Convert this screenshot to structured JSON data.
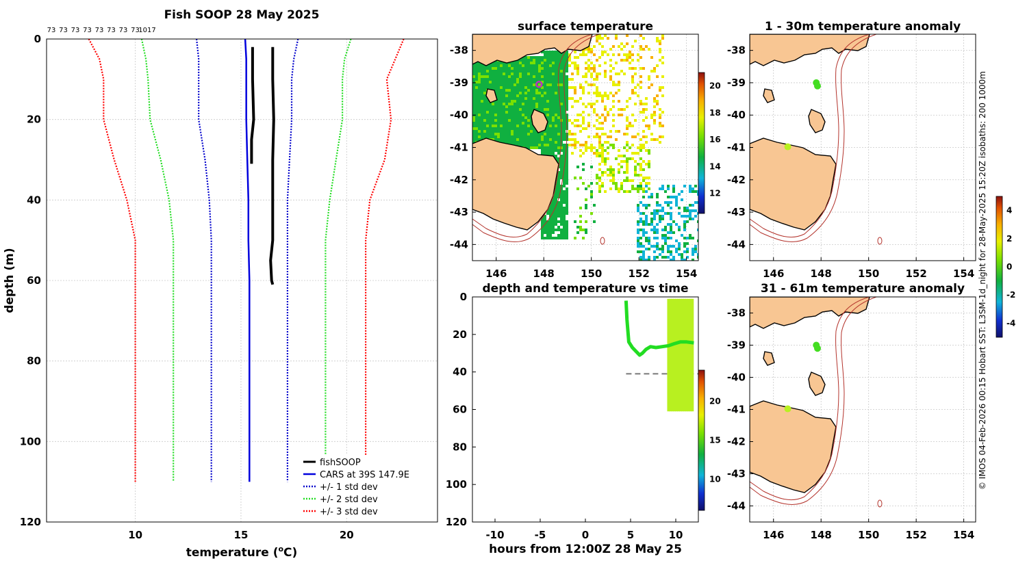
{
  "chart_data": [
    {
      "type": "line",
      "title": "Fish SOOP 28 May 2025",
      "xlabel": "temperature (",
      "xlabel_unit": "o",
      "xlabel_tail": "C)",
      "ylabel": "depth (m)",
      "xlim": [
        5.8,
        24.3
      ],
      "ylim": [
        0,
        120
      ],
      "xticks": [
        "10",
        "15",
        "20"
      ],
      "xtick_values": [
        10,
        15,
        20
      ],
      "yticks": [
        "0",
        "20",
        "40",
        "60",
        "80",
        "100",
        "120"
      ],
      "ytick_values": [
        0,
        20,
        40,
        60,
        80,
        100,
        120
      ],
      "top_labels": [
        "73",
        "73",
        "73",
        "73",
        "73",
        "73",
        "73",
        "73",
        "1017"
      ],
      "series": [
        {
          "name": "+/- 3 std dev",
          "color": "#ff0000",
          "style": "dotted",
          "depth": [
            0,
            5,
            10,
            20,
            30,
            40,
            50,
            110
          ],
          "left": [
            7.8,
            8.3,
            8.5,
            8.5,
            9.0,
            9.6,
            10.0,
            10.0
          ],
          "right": [
            22.7,
            22.3,
            21.9,
            22.1,
            21.8,
            21.1,
            20.9,
            20.9
          ]
        },
        {
          "name": "+/- 2 std dev",
          "color": "#22dd22",
          "style": "dotted",
          "depth": [
            0,
            5,
            10,
            20,
            30,
            40,
            50,
            110
          ],
          "left": [
            10.3,
            10.5,
            10.6,
            10.7,
            11.2,
            11.6,
            11.8,
            11.8
          ],
          "right": [
            20.2,
            19.9,
            19.8,
            19.8,
            19.5,
            19.2,
            19.0,
            19.0
          ]
        },
        {
          "name": "+/- 1 std dev",
          "color": "#0000cc",
          "style": "dotted",
          "depth": [
            0,
            5,
            10,
            20,
            30,
            40,
            50,
            110
          ],
          "left": [
            12.9,
            13.0,
            13.0,
            13.0,
            13.3,
            13.5,
            13.6,
            13.6
          ],
          "right": [
            17.7,
            17.5,
            17.4,
            17.4,
            17.3,
            17.2,
            17.2,
            17.2
          ]
        },
        {
          "name": "CARS at 39S 147.9E",
          "color": "#0000dd",
          "style": "solid",
          "depth": [
            0,
            5,
            10,
            20,
            30,
            40,
            50,
            60,
            70,
            110
          ],
          "temp": [
            15.2,
            15.25,
            15.25,
            15.25,
            15.3,
            15.35,
            15.35,
            15.4,
            15.4,
            15.4
          ]
        },
        {
          "name": "fishSOOP",
          "color": "#000000",
          "style": "solid",
          "depth": [
            2,
            10,
            20,
            30,
            40,
            50,
            55,
            60,
            61
          ],
          "temp": [
            16.5,
            16.5,
            16.55,
            16.5,
            16.5,
            16.5,
            16.4,
            16.45,
            16.5
          ],
          "depth2": [
            2,
            10,
            20,
            25,
            31
          ],
          "temp2": [
            15.55,
            15.55,
            15.6,
            15.5,
            15.5
          ]
        }
      ],
      "legend": [
        "fishSOOP",
        "CARS at 39S 147.9E",
        "+/- 1 std dev",
        "+/- 2 std dev",
        "+/- 3 std dev"
      ]
    },
    {
      "type": "heatmap",
      "title": "surface temperature",
      "xlim": [
        145,
        154.5
      ],
      "ylim": [
        -44.5,
        -37.5
      ],
      "xticks": [
        "146",
        "148",
        "150",
        "152",
        "154"
      ],
      "xtick_values": [
        146,
        148,
        150,
        152,
        154
      ],
      "yticks": [
        "-38",
        "-39",
        "-40",
        "-41",
        "-42",
        "-43",
        "-44"
      ],
      "ytick_values": [
        -38,
        -39,
        -40,
        -41,
        -42,
        -43,
        -44
      ],
      "colorbar_ticks": [
        "12",
        "14",
        "16",
        "18",
        "20"
      ],
      "colorbar_values": [
        12,
        14,
        16,
        18,
        20
      ],
      "colorbar_range": [
        10.5,
        21
      ],
      "marker_position": [
        147.8,
        -39.05
      ]
    },
    {
      "type": "scatter",
      "title": "depth and temperature vs time",
      "xlabel": "hours from 12:00Z 28 May 25",
      "xlim": [
        -12.5,
        12.5
      ],
      "ylim": [
        0,
        120
      ],
      "xticks": [
        "-10",
        "-5",
        "0",
        "5",
        "10"
      ],
      "xtick_values": [
        -10,
        -5,
        0,
        5,
        10
      ],
      "yticks": [
        "0",
        "20",
        "40",
        "60",
        "80",
        "100",
        "120"
      ],
      "ytick_values": [
        0,
        20,
        40,
        60,
        80,
        100,
        120
      ],
      "reference_depth": 41,
      "colorbar_ticks": [
        "10",
        "15",
        "20"
      ],
      "colorbar_values": [
        10,
        15,
        20
      ],
      "colorbar_range": [
        6,
        24
      ],
      "track_hours": [
        4.5,
        4.6,
        4.8,
        5.2,
        5.6,
        6.0,
        6.3,
        6.7,
        7.2,
        7.8,
        8.5,
        9.2,
        9.8,
        10.5,
        11.2,
        12.0
      ],
      "track_depths": [
        2,
        12,
        24,
        27,
        29,
        31,
        30,
        28,
        26.5,
        27,
        26.5,
        26,
        25,
        24,
        24,
        24.5
      ]
    },
    {
      "type": "scatter",
      "title": "1 - 30m temperature anomaly",
      "xlim": [
        145,
        154.5
      ],
      "ylim": [
        -44.5,
        -37.5
      ],
      "xticks": [
        "146",
        "148",
        "150",
        "152",
        "154"
      ],
      "xtick_values": [
        146,
        148,
        150,
        152,
        154
      ],
      "yticks": [
        "-38",
        "-39",
        "-40",
        "-41",
        "-42",
        "-43",
        "-44"
      ],
      "ytick_values": [
        -38,
        -39,
        -40,
        -41,
        -42,
        -43,
        -44
      ],
      "points": [
        [
          147.8,
          -39.0
        ],
        [
          147.85,
          -39.1
        ],
        [
          146.6,
          -40.98
        ]
      ]
    },
    {
      "type": "scatter",
      "title": "31 - 61m temperature anomaly",
      "xlim": [
        145,
        154.5
      ],
      "ylim": [
        -44.5,
        -37.5
      ],
      "xticks": [
        "146",
        "148",
        "150",
        "152",
        "154"
      ],
      "xtick_values": [
        146,
        148,
        150,
        152,
        154
      ],
      "yticks": [
        "-38",
        "-39",
        "-40",
        "-41",
        "-42",
        "-43",
        "-44"
      ],
      "ytick_values": [
        -38,
        -39,
        -40,
        -41,
        -42,
        -43,
        -44
      ],
      "points": [
        [
          147.8,
          -39.0
        ],
        [
          147.85,
          -39.1
        ],
        [
          146.6,
          -40.98
        ]
      ],
      "colorbar_ticks": [
        "-4",
        "-2",
        "0",
        "2",
        "4"
      ],
      "colorbar_values": [
        -4,
        -2,
        0,
        2,
        4
      ],
      "colorbar_range": [
        -5,
        5
      ]
    }
  ],
  "side_text": "© IMOS 04-Feb-2026 00:15 Hobart SST: L3SM-1d_night for 28-May-2025 15:20Z isobaths: 200  1000m"
}
